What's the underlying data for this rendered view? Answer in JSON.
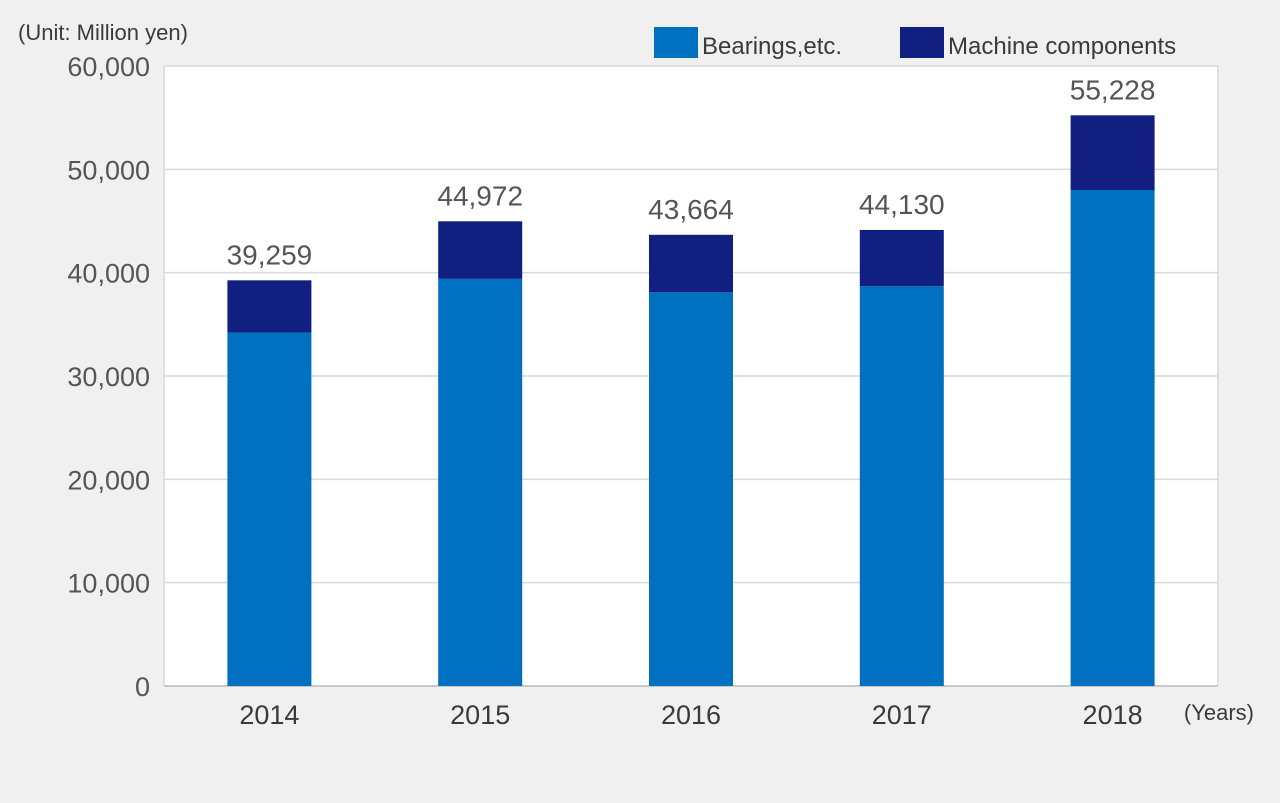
{
  "chart_data": {
    "type": "bar",
    "stacked": true,
    "title": "",
    "unit_label": "(Unit: Million yen)",
    "xlabel": "(Years)",
    "ylabel": "",
    "ylim": [
      0,
      60000
    ],
    "yticks": [
      0,
      10000,
      20000,
      30000,
      40000,
      50000,
      60000
    ],
    "ytick_labels": [
      "0",
      "10,000",
      "20,000",
      "30,000",
      "40,000",
      "50,000",
      "60,000"
    ],
    "grid": true,
    "legend_position": "top-right",
    "categories": [
      "2014",
      "2015",
      "2016",
      "2017",
      "2018"
    ],
    "series": [
      {
        "name": "Bearings,etc.",
        "color": "#0070c0",
        "values": [
          34200,
          39400,
          38100,
          38700,
          48000
        ]
      },
      {
        "name": "Machine components",
        "color": "#112080",
        "values": [
          5059,
          5572,
          5564,
          5430,
          7228
        ]
      }
    ],
    "totals": [
      39259,
      44972,
      43664,
      44130,
      55228
    ],
    "total_labels": [
      "39,259",
      "44,972",
      "43,664",
      "44,130",
      "55,228"
    ]
  }
}
